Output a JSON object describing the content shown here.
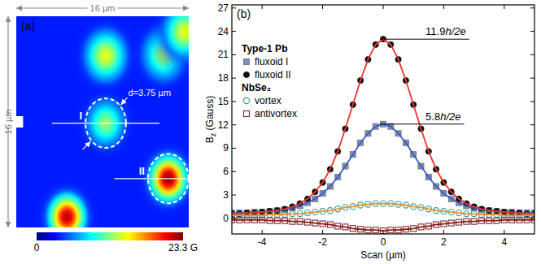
{
  "chart_data": [
    {
      "type": "heatmap",
      "panel": "(a)",
      "width_label": "16 µm",
      "height_label": "16 µm",
      "xlim": [
        0,
        16
      ],
      "ylim": [
        0,
        16
      ],
      "background": 3.5,
      "spots": [
        {
          "x": 8.3,
          "y": 3.0,
          "peak": 14.0,
          "width": 1.1
        },
        {
          "x": 13.7,
          "y": 2.9,
          "peak": 12.5,
          "width": 1.1
        },
        {
          "x": 15.6,
          "y": 1.2,
          "peak": 14.0,
          "width": 1.1
        },
        {
          "x": 8.3,
          "y": 8.1,
          "peak": 12.1,
          "width": 1.0
        },
        {
          "x": 14.1,
          "y": 12.3,
          "peak": 23.0,
          "width": 1.0
        },
        {
          "x": 4.7,
          "y": 15.2,
          "peak": 22.0,
          "width": 1.0
        }
      ],
      "circles": [
        {
          "label": "I",
          "x": 8.3,
          "y": 8.1
        },
        {
          "label": "II",
          "x": 14.1,
          "y": 12.3
        }
      ],
      "circle_diameter": 3.75,
      "annotation": "d=3.75 µm",
      "colorbar": {
        "range": [
          0,
          23.3
        ],
        "ticks": [
          {
            "value": 0,
            "label": "0"
          },
          {
            "value": 23.3,
            "label": "23.3 G"
          }
        ]
      }
    },
    {
      "type": "scatter",
      "panel": "(b)",
      "xlabel": "Scan (µm)",
      "ylabel": "Bz (Gauss)",
      "xlim": [
        -5,
        5
      ],
      "ylim": [
        -2,
        27.4
      ],
      "xticks": [
        -4,
        -2,
        0,
        2,
        4
      ],
      "yticks": [
        0,
        3,
        6,
        9,
        12,
        15,
        18,
        21,
        24,
        27
      ],
      "grid": false,
      "legend": "upper left",
      "x": [
        -5,
        -4.75,
        -4.5,
        -4.25,
        -4,
        -3.75,
        -3.5,
        -3.25,
        -3,
        -2.75,
        -2.5,
        -2.25,
        -2,
        -1.75,
        -1.5,
        -1.25,
        -1,
        -0.75,
        -0.5,
        -0.25,
        0,
        0.25,
        0.5,
        0.75,
        1,
        1.25,
        1.5,
        1.75,
        2,
        2.25,
        2.5,
        2.75,
        3,
        3.25,
        3.5,
        3.75,
        4,
        4.25,
        4.5,
        4.75,
        5
      ],
      "series": [
        {
          "name": "fluxoid I",
          "group": "Type-1 Pb",
          "type": "scatter",
          "marker": "square",
          "color": "#7c8ebf",
          "values": [
            0.7,
            0.7,
            0.7,
            0.8,
            0.8,
            0.9,
            1.0,
            1.1,
            1.3,
            1.6,
            2.0,
            2.5,
            3.2,
            4.1,
            5.3,
            6.7,
            8.2,
            9.7,
            10.9,
            11.8,
            12.1,
            11.8,
            10.9,
            9.7,
            8.2,
            6.7,
            5.3,
            4.1,
            3.2,
            2.5,
            2.0,
            1.6,
            1.3,
            1.1,
            1.0,
            0.9,
            0.8,
            0.8,
            0.7,
            0.7,
            0.7
          ]
        },
        {
          "name": "fluxoid II",
          "group": "Type-1 Pb",
          "type": "scatter",
          "marker": "circle",
          "color": "#111111",
          "values": [
            0.6,
            0.6,
            0.7,
            0.7,
            0.8,
            0.9,
            1.0,
            1.2,
            1.5,
            1.9,
            2.5,
            3.4,
            4.6,
            6.3,
            8.6,
            11.5,
            14.6,
            17.7,
            20.4,
            22.3,
            23.0,
            22.3,
            20.4,
            17.7,
            14.6,
            11.5,
            8.6,
            6.3,
            4.6,
            3.4,
            2.5,
            1.9,
            1.5,
            1.2,
            1.0,
            0.9,
            0.8,
            0.7,
            0.7,
            0.6,
            0.6
          ]
        },
        {
          "name": "vortex",
          "group": "NbSe₂",
          "type": "scatter",
          "marker": "open_circle",
          "color": "#2a9d9a",
          "values": [
            0.4,
            0.4,
            0.4,
            0.4,
            0.4,
            0.5,
            0.5,
            0.5,
            0.6,
            0.6,
            0.7,
            0.8,
            0.9,
            1.0,
            1.2,
            1.4,
            1.5,
            1.7,
            1.8,
            1.9,
            1.9,
            1.9,
            1.8,
            1.7,
            1.5,
            1.4,
            1.2,
            1.0,
            0.9,
            0.8,
            0.7,
            0.6,
            0.6,
            0.5,
            0.5,
            0.5,
            0.4,
            0.4,
            0.4,
            0.4,
            0.4
          ]
        },
        {
          "name": "antivortex",
          "group": "NbSe₂",
          "type": "scatter",
          "marker": "open_square",
          "color": "#7a2a2a",
          "values": [
            -0.2,
            -0.2,
            -0.2,
            -0.2,
            -0.2,
            -0.3,
            -0.3,
            -0.3,
            -0.4,
            -0.4,
            -0.5,
            -0.6,
            -0.7,
            -0.8,
            -1.0,
            -1.1,
            -1.3,
            -1.4,
            -1.5,
            -1.5,
            -1.6,
            -1.5,
            -1.5,
            -1.4,
            -1.3,
            -1.1,
            -1.0,
            -0.8,
            -0.7,
            -0.6,
            -0.5,
            -0.4,
            -0.4,
            -0.3,
            -0.3,
            -0.3,
            -0.2,
            -0.2,
            -0.2,
            -0.2,
            -0.2
          ]
        },
        {
          "type": "line",
          "line_style": "solid",
          "color": "#3a5bbf",
          "values": [
            0.7,
            0.7,
            0.7,
            0.8,
            0.8,
            0.9,
            1.0,
            1.1,
            1.3,
            1.6,
            2.0,
            2.5,
            3.2,
            4.1,
            5.3,
            6.7,
            8.2,
            9.7,
            10.9,
            11.8,
            12.1,
            11.8,
            10.9,
            9.7,
            8.2,
            6.7,
            5.3,
            4.1,
            3.2,
            2.5,
            2.0,
            1.6,
            1.3,
            1.1,
            1.0,
            0.9,
            0.8,
            0.8,
            0.7,
            0.7,
            0.7
          ]
        },
        {
          "type": "line",
          "line_style": "solid",
          "color": "#e8352b",
          "values": [
            0.6,
            0.6,
            0.7,
            0.7,
            0.8,
            0.9,
            1.0,
            1.2,
            1.5,
            1.9,
            2.5,
            3.4,
            4.6,
            6.3,
            8.6,
            11.5,
            14.6,
            17.7,
            20.4,
            22.3,
            23.0,
            22.3,
            20.4,
            17.7,
            14.6,
            11.5,
            8.6,
            6.3,
            4.6,
            3.4,
            2.5,
            1.9,
            1.5,
            1.2,
            1.0,
            0.9,
            0.8,
            0.7,
            0.7,
            0.6,
            0.6
          ]
        },
        {
          "type": "line",
          "line_style": "solid",
          "color": "#f08a24",
          "values": [
            0.4,
            0.4,
            0.4,
            0.4,
            0.4,
            0.5,
            0.5,
            0.5,
            0.6,
            0.6,
            0.7,
            0.8,
            0.9,
            1.0,
            1.2,
            1.4,
            1.5,
            1.7,
            1.8,
            1.9,
            1.9,
            1.9,
            1.8,
            1.7,
            1.5,
            1.4,
            1.2,
            1.0,
            0.9,
            0.8,
            0.7,
            0.6,
            0.6,
            0.5,
            0.5,
            0.5,
            0.4,
            0.4,
            0.4,
            0.4,
            0.4
          ]
        },
        {
          "type": "line",
          "line_style": "solid",
          "color": "#8b1a1a",
          "values": [
            -0.2,
            -0.2,
            -0.2,
            -0.2,
            -0.2,
            -0.3,
            -0.3,
            -0.3,
            -0.4,
            -0.4,
            -0.5,
            -0.6,
            -0.7,
            -0.8,
            -1.0,
            -1.1,
            -1.3,
            -1.4,
            -1.5,
            -1.5,
            -1.6,
            -1.5,
            -1.5,
            -1.4,
            -1.3,
            -1.1,
            -1.0,
            -0.8,
            -0.7,
            -0.6,
            -0.5,
            -0.4,
            -0.4,
            -0.3,
            -0.3,
            -0.3,
            -0.2,
            -0.2,
            -0.2,
            -0.2,
            -0.2
          ]
        }
      ],
      "annotations": [
        {
          "text": "11.9h/2e",
          "x": 0,
          "y": 23.0
        },
        {
          "text": "5.8h/2e",
          "x": 0,
          "y": 12.1
        }
      ]
    }
  ]
}
